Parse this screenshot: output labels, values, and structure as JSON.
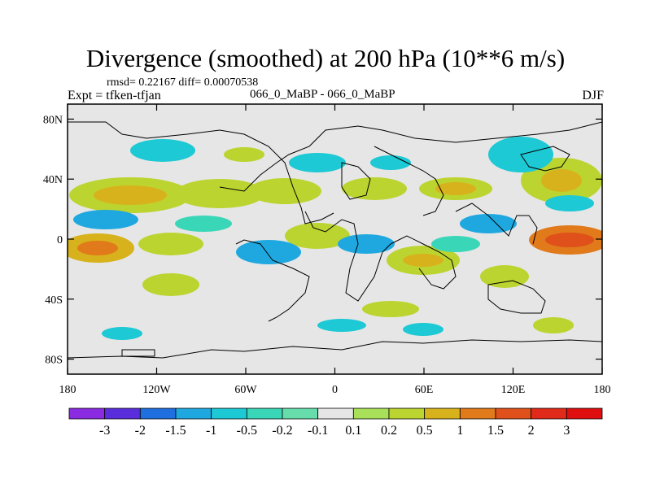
{
  "chart_data": {
    "type": "heatmap",
    "title": "Divergence (smoothed) at 200 hPa (10**6 m/s)",
    "stats": "rmsd= 0.22167 diff= 0.00070538",
    "experiment_ids": "066_0_MaBP - 066_0_MaBP",
    "experiment": "Expt = tfken-tfjan",
    "season": "DJF",
    "x_ticks": [
      "180",
      "120W",
      "60W",
      "0",
      "60E",
      "120E",
      "180"
    ],
    "x_values": [
      -180,
      -120,
      -60,
      0,
      60,
      120,
      180
    ],
    "y_ticks": [
      "80N",
      "40N",
      "0",
      "40S",
      "80S"
    ],
    "y_values": [
      80,
      40,
      0,
      -40,
      -80
    ],
    "xlim": [
      -180,
      180
    ],
    "ylim": [
      -90,
      90
    ],
    "colorbar": {
      "labels": [
        "-3",
        "-2",
        "-1.5",
        "-1",
        "-0.5",
        "-0.2",
        "-0.1",
        "0.1",
        "0.2",
        "0.5",
        "1",
        "1.5",
        "2",
        "3"
      ],
      "colors": [
        "#8a2be2",
        "#5a2ddc",
        "#1f6fe0",
        "#1fa8e0",
        "#1cc9d4",
        "#3ad6b8",
        "#66ddaa",
        "#e6e6e6",
        "#a8e05a",
        "#bcd42f",
        "#d8b21c",
        "#e07a1a",
        "#e0501a",
        "#e02a1a",
        "#e00f0f"
      ]
    }
  }
}
